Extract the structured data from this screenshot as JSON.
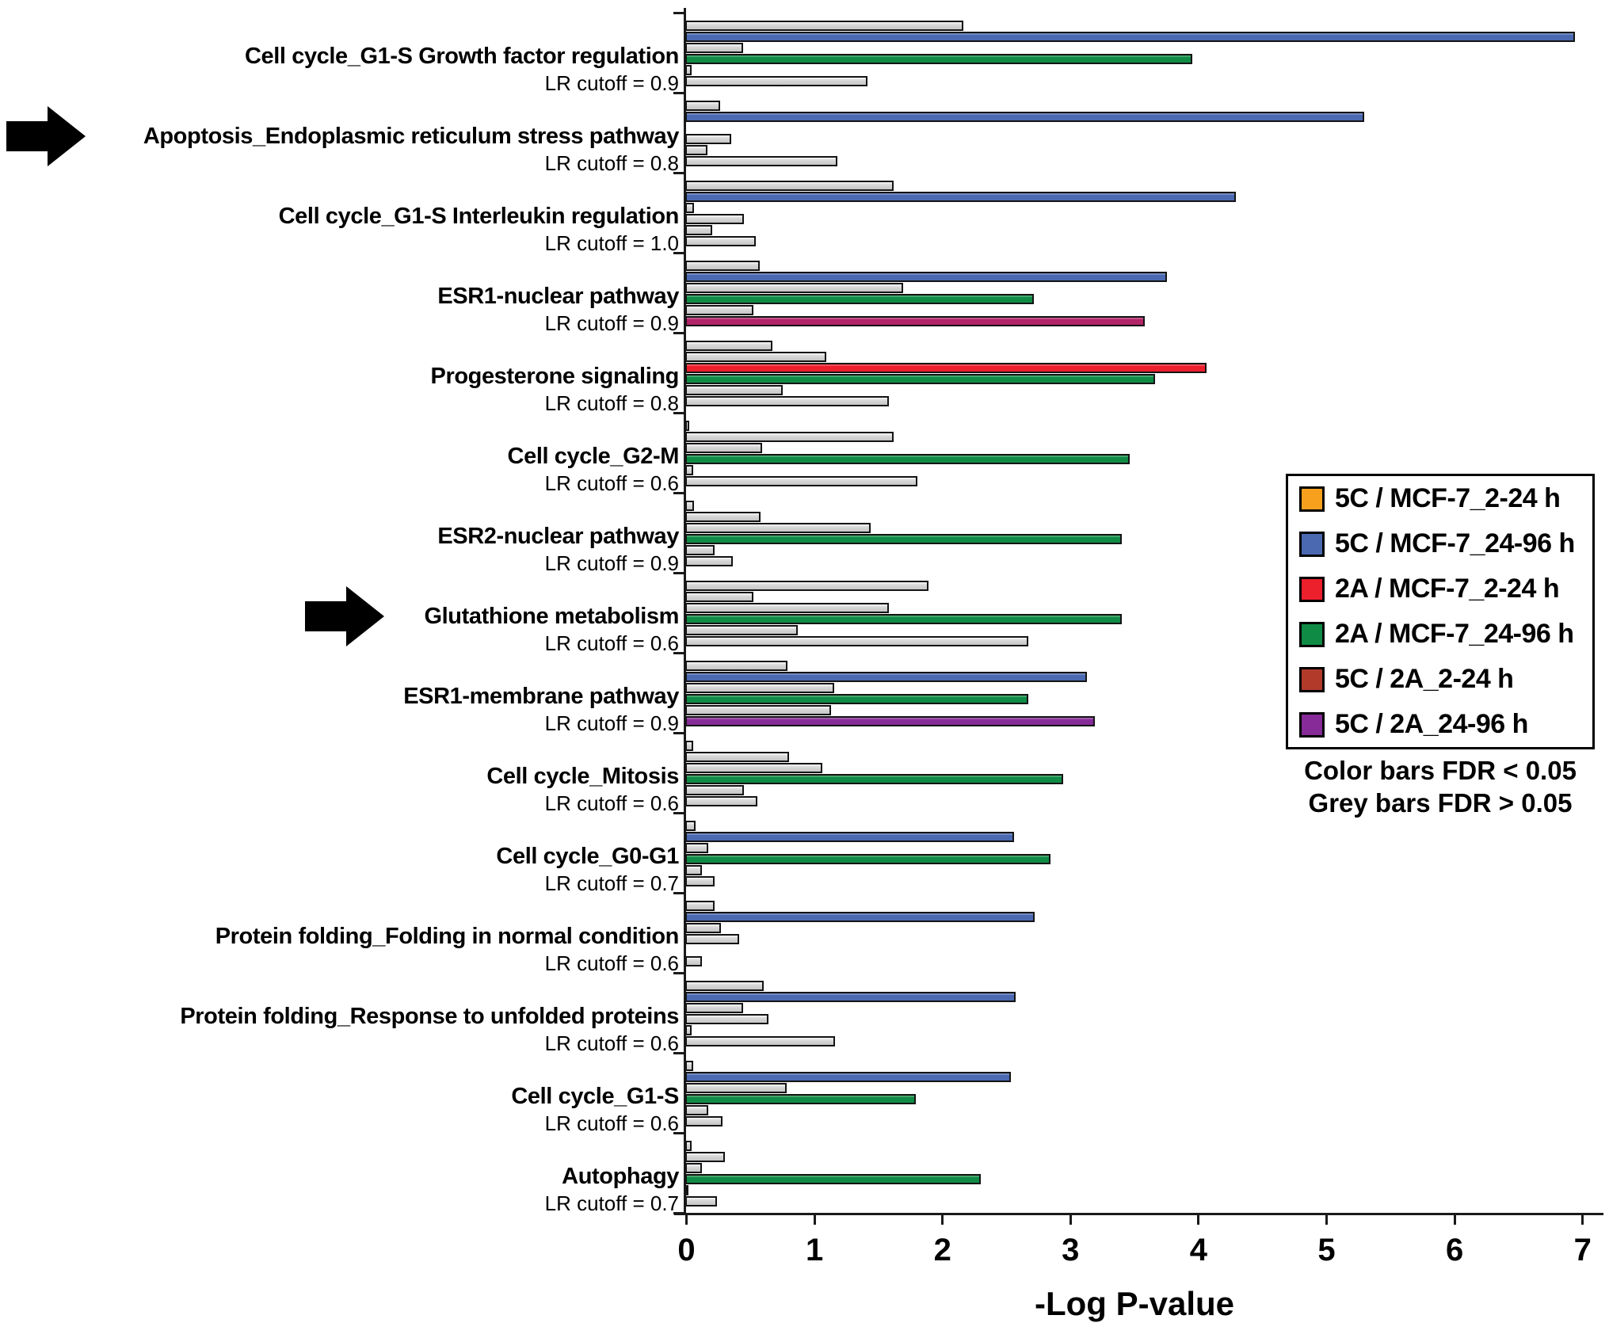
{
  "chart_data": {
    "type": "bar",
    "orientation": "horizontal",
    "xlabel": "-Log P-value",
    "xlim": [
      0,
      7
    ],
    "xticks": [
      0,
      1,
      2,
      3,
      4,
      5,
      6,
      7
    ],
    "grid": false,
    "legend_position": "right",
    "palette": {
      "grey": "#D4D4D4",
      "orange": "#F6A01E",
      "blue": "#4A69B1",
      "red": "#EC1F2D",
      "green": "#0F8B45",
      "brick": "#B13A2B",
      "purple": "#862B97",
      "magenta": "#B22367"
    },
    "legend": [
      {
        "label": "5C / MCF-7_2-24 h",
        "color": "orange"
      },
      {
        "label": "5C / MCF-7_24-96 h",
        "color": "blue"
      },
      {
        "label": "2A / MCF-7_2-24 h",
        "color": "red"
      },
      {
        "label": "2A / MCF-7_24-96 h",
        "color": "green"
      },
      {
        "label": "5C / 2A_2-24 h",
        "color": "brick"
      },
      {
        "label": "5C / 2A_24-96 h",
        "color": "purple"
      }
    ],
    "fdr_notes": [
      "Color bars FDR < 0.05",
      "Grey bars FDR > 0.05"
    ],
    "note": "bars in each group follow legend order; grey fill means FDR > 0.05",
    "groups": [
      {
        "name": "Cell cycle_G1-S Growth factor regulation",
        "lr": "LR cutoff = 0.9",
        "arrow": false,
        "bars": [
          {
            "v": 2.17,
            "c": "grey"
          },
          {
            "v": 6.95,
            "c": "blue"
          },
          {
            "v": 0.45,
            "c": "grey"
          },
          {
            "v": 3.96,
            "c": "green"
          },
          {
            "v": 0.05,
            "c": "grey"
          },
          {
            "v": 1.42,
            "c": "grey"
          }
        ]
      },
      {
        "name": "Apoptosis_Endoplasmic reticulum stress pathway",
        "lr": "LR cutoff = 0.8",
        "arrow": true,
        "bars": [
          {
            "v": 0.27,
            "c": "grey"
          },
          {
            "v": 5.3,
            "c": "blue"
          },
          null,
          {
            "v": 0.36,
            "c": "grey"
          },
          {
            "v": 0.17,
            "c": "grey"
          },
          {
            "v": 1.19,
            "c": "grey"
          }
        ]
      },
      {
        "name": "Cell cycle_G1-S Interleukin regulation",
        "lr": "LR cutoff = 1.0",
        "arrow": false,
        "bars": [
          {
            "v": 1.63,
            "c": "grey"
          },
          {
            "v": 4.3,
            "c": "blue"
          },
          {
            "v": 0.07,
            "c": "grey"
          },
          {
            "v": 0.46,
            "c": "grey"
          },
          {
            "v": 0.21,
            "c": "grey"
          },
          {
            "v": 0.55,
            "c": "grey"
          }
        ]
      },
      {
        "name": "ESR1-nuclear pathway",
        "lr": "LR cutoff = 0.9",
        "arrow": false,
        "bars": [
          {
            "v": 0.58,
            "c": "grey"
          },
          {
            "v": 3.76,
            "c": "blue"
          },
          {
            "v": 1.7,
            "c": "grey"
          },
          {
            "v": 2.72,
            "c": "green"
          },
          {
            "v": 0.53,
            "c": "grey"
          },
          {
            "v": 3.59,
            "c": "magenta"
          }
        ]
      },
      {
        "name": "Progesterone signaling",
        "lr": "LR cutoff = 0.8",
        "arrow": false,
        "bars": [
          {
            "v": 0.68,
            "c": "grey"
          },
          {
            "v": 1.1,
            "c": "grey"
          },
          {
            "v": 4.07,
            "c": "red"
          },
          {
            "v": 3.67,
            "c": "green"
          },
          {
            "v": 0.76,
            "c": "grey"
          },
          {
            "v": 1.59,
            "c": "grey"
          }
        ]
      },
      {
        "name": "Cell cycle_G2-M",
        "lr": "LR cutoff = 0.6",
        "arrow": false,
        "bars": [
          {
            "v": 0.03,
            "c": "grey"
          },
          {
            "v": 1.63,
            "c": "grey"
          },
          {
            "v": 0.6,
            "c": "grey"
          },
          {
            "v": 3.47,
            "c": "green"
          },
          {
            "v": 0.06,
            "c": "grey"
          },
          {
            "v": 1.81,
            "c": "grey"
          }
        ]
      },
      {
        "name": "ESR2-nuclear pathway",
        "lr": "LR cutoff = 0.9",
        "arrow": false,
        "bars": [
          {
            "v": 0.07,
            "c": "grey"
          },
          {
            "v": 0.59,
            "c": "grey"
          },
          {
            "v": 1.45,
            "c": "grey"
          },
          {
            "v": 3.41,
            "c": "green"
          },
          {
            "v": 0.23,
            "c": "grey"
          },
          {
            "v": 0.37,
            "c": "grey"
          }
        ]
      },
      {
        "name": "Glutathione metabolism",
        "lr": "LR cutoff = 0.6",
        "arrow": true,
        "bars": [
          {
            "v": 1.9,
            "c": "grey"
          },
          {
            "v": 0.53,
            "c": "grey"
          },
          {
            "v": 1.59,
            "c": "grey"
          },
          {
            "v": 3.41,
            "c": "green"
          },
          {
            "v": 0.88,
            "c": "grey"
          },
          {
            "v": 2.68,
            "c": "grey"
          }
        ]
      },
      {
        "name": "ESR1-membrane pathway",
        "lr": "LR cutoff = 0.9",
        "arrow": false,
        "bars": [
          {
            "v": 0.8,
            "c": "grey"
          },
          {
            "v": 3.14,
            "c": "blue"
          },
          {
            "v": 1.16,
            "c": "grey"
          },
          {
            "v": 2.68,
            "c": "green"
          },
          {
            "v": 1.14,
            "c": "grey"
          },
          {
            "v": 3.2,
            "c": "purple"
          }
        ]
      },
      {
        "name": "Cell cycle_Mitosis",
        "lr": "LR cutoff = 0.6",
        "arrow": false,
        "bars": [
          {
            "v": 0.06,
            "c": "grey"
          },
          {
            "v": 0.81,
            "c": "grey"
          },
          {
            "v": 1.07,
            "c": "grey"
          },
          {
            "v": 2.95,
            "c": "green"
          },
          {
            "v": 0.46,
            "c": "grey"
          },
          {
            "v": 0.56,
            "c": "grey"
          }
        ]
      },
      {
        "name": "Cell cycle_G0-G1",
        "lr": "LR cutoff = 0.7",
        "arrow": false,
        "bars": [
          {
            "v": 0.08,
            "c": "grey"
          },
          {
            "v": 2.57,
            "c": "blue"
          },
          {
            "v": 0.18,
            "c": "grey"
          },
          {
            "v": 2.85,
            "c": "green"
          },
          {
            "v": 0.13,
            "c": "grey"
          },
          {
            "v": 0.23,
            "c": "grey"
          }
        ]
      },
      {
        "name": "Protein folding_Folding in normal condition",
        "lr": "LR cutoff = 0.6",
        "arrow": false,
        "bars": [
          {
            "v": 0.23,
            "c": "grey"
          },
          {
            "v": 2.73,
            "c": "blue"
          },
          {
            "v": 0.28,
            "c": "grey"
          },
          {
            "v": 0.42,
            "c": "grey"
          },
          null,
          {
            "v": 0.13,
            "c": "grey"
          }
        ]
      },
      {
        "name": "Protein folding_Response to unfolded proteins",
        "lr": "LR cutoff = 0.6",
        "arrow": false,
        "bars": [
          {
            "v": 0.61,
            "c": "grey"
          },
          {
            "v": 2.58,
            "c": "blue"
          },
          {
            "v": 0.45,
            "c": "grey"
          },
          {
            "v": 0.65,
            "c": "grey"
          },
          {
            "v": 0.05,
            "c": "grey"
          },
          {
            "v": 1.17,
            "c": "grey"
          }
        ]
      },
      {
        "name": "Cell cycle_G1-S",
        "lr": "LR cutoff = 0.6",
        "arrow": false,
        "bars": [
          {
            "v": 0.06,
            "c": "grey"
          },
          {
            "v": 2.54,
            "c": "blue"
          },
          {
            "v": 0.79,
            "c": "grey"
          },
          {
            "v": 1.8,
            "c": "green"
          },
          {
            "v": 0.18,
            "c": "grey"
          },
          {
            "v": 0.29,
            "c": "grey"
          }
        ]
      },
      {
        "name": "Autophagy",
        "lr": "LR cutoff = 0.7",
        "arrow": false,
        "bars": [
          {
            "v": 0.05,
            "c": "grey"
          },
          {
            "v": 0.31,
            "c": "grey"
          },
          {
            "v": 0.13,
            "c": "grey"
          },
          {
            "v": 2.31,
            "c": "green"
          },
          {
            "v": 0.02,
            "c": "grey"
          },
          {
            "v": 0.25,
            "c": "grey"
          }
        ]
      }
    ]
  }
}
